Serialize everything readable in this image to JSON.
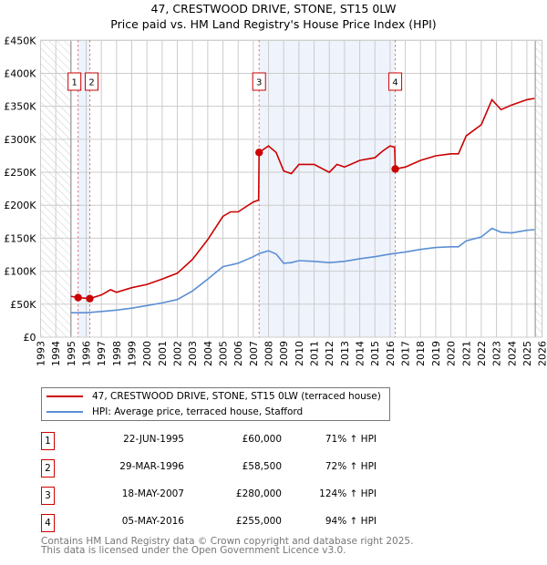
{
  "title": "47, CRESTWOOD DRIVE, STONE, ST15 0LW",
  "subtitle": "Price paid vs. HM Land Registry's House Price Index (HPI)",
  "legend": {
    "property": "47, CRESTWOOD DRIVE, STONE, ST15 0LW (terraced house)",
    "hpi": "HPI: Average price, terraced house, Stafford"
  },
  "colors": {
    "property": "#cc0000",
    "hpi": "#5b8fd4",
    "band": "#eef3fc"
  },
  "sales": [
    {
      "n": "1",
      "date": "22-JUN-1995",
      "price": "£60,000",
      "hpi": "71% ↑ HPI",
      "x": 1995.47,
      "y": 60000
    },
    {
      "n": "2",
      "date": "29-MAR-1996",
      "price": "£58,500",
      "hpi": "72% ↑ HPI",
      "x": 1996.24,
      "y": 58500
    },
    {
      "n": "3",
      "date": "18-MAY-2007",
      "price": "£280,000",
      "hpi": "124% ↑ HPI",
      "x": 2007.38,
      "y": 280000
    },
    {
      "n": "4",
      "date": "05-MAY-2016",
      "price": "£255,000",
      "hpi": "94% ↑ HPI",
      "x": 2016.34,
      "y": 255000
    }
  ],
  "footer": [
    "Contains HM Land Registry data © Crown copyright and database right 2025.",
    "This data is licensed under the Open Government Licence v3.0."
  ],
  "chart_data": {
    "type": "line",
    "title": "47, CRESTWOOD DRIVE, STONE, ST15 0LW",
    "subtitle": "Price paid vs. HM Land Registry's House Price Index (HPI)",
    "xlim": [
      1993,
      2026
    ],
    "ylim": [
      0,
      450000
    ],
    "yticks": [
      0,
      50000,
      100000,
      150000,
      200000,
      250000,
      300000,
      350000,
      400000,
      450000
    ],
    "ytick_labels": [
      "£0",
      "£50K",
      "£100K",
      "£150K",
      "£200K",
      "£250K",
      "£300K",
      "£350K",
      "£400K",
      "£450K"
    ],
    "xticks": [
      "1993",
      "1994",
      "1995",
      "1996",
      "1997",
      "1998",
      "1999",
      "2000",
      "2001",
      "2002",
      "2003",
      "2004",
      "2005",
      "2006",
      "2007",
      "2008",
      "2009",
      "2010",
      "2011",
      "2012",
      "2013",
      "2014",
      "2015",
      "2016",
      "2017",
      "2018",
      "2019",
      "2020",
      "2021",
      "2022",
      "2023",
      "2024",
      "2025",
      "2026"
    ],
    "grid": true,
    "series": [
      {
        "name": "47, CRESTWOOD DRIVE, STONE, ST15 0LW (terraced house)",
        "x": [
          1995.0,
          1995.47,
          1996.24,
          1997,
          1997.6,
          1998,
          1999,
          2000,
          2001,
          2002,
          2003,
          2004,
          2005,
          2005.5,
          2006,
          2007,
          2007.35,
          2007.38,
          2008,
          2008.5,
          2009,
          2009.5,
          2010,
          2011,
          2012,
          2012.5,
          2013,
          2014,
          2015,
          2015.5,
          2016,
          2016.3,
          2016.34,
          2017,
          2018,
          2019,
          2020,
          2020.5,
          2021,
          2022,
          2022.7,
          2023.3,
          2024,
          2025,
          2025.5
        ],
        "y": [
          62000,
          60000,
          58500,
          64000,
          72000,
          68000,
          75000,
          80000,
          88000,
          97000,
          118000,
          148000,
          183000,
          190000,
          190000,
          205000,
          208000,
          280000,
          290000,
          280000,
          252000,
          248000,
          262000,
          262000,
          250000,
          262000,
          258000,
          268000,
          272000,
          282000,
          290000,
          288000,
          255000,
          258000,
          268000,
          275000,
          278000,
          278000,
          305000,
          322000,
          360000,
          345000,
          352000,
          360000,
          362000
        ]
      },
      {
        "name": "HPI: Average price, terraced house, Stafford",
        "x": [
          1995.0,
          1996,
          1997,
          1998,
          1999,
          2000,
          2001,
          2002,
          2003,
          2004,
          2005,
          2006,
          2007,
          2007.4,
          2008,
          2008.5,
          2009,
          2009.5,
          2010,
          2011,
          2012,
          2013,
          2014,
          2015,
          2016,
          2017,
          2018,
          2019,
          2020,
          2020.5,
          2021,
          2022,
          2022.7,
          2023.3,
          2024,
          2025,
          2025.5
        ],
        "y": [
          37000,
          37000,
          39000,
          41000,
          44000,
          48000,
          52000,
          57000,
          70000,
          88000,
          107000,
          112000,
          122000,
          127000,
          131000,
          126000,
          112000,
          113000,
          116000,
          115000,
          113000,
          115000,
          119000,
          122000,
          126000,
          129000,
          133000,
          136000,
          137000,
          137000,
          146000,
          152000,
          165000,
          159000,
          158000,
          162000,
          163000
        ]
      }
    ]
  }
}
